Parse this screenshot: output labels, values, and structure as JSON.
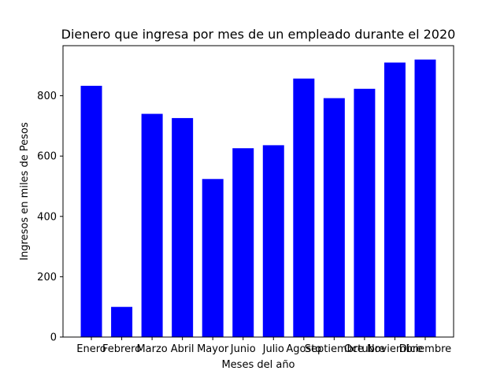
{
  "chart_data": {
    "type": "bar",
    "title": "Dienero que ingresa por mes de un empleado durante el 2020",
    "xlabel": "Meses del año",
    "ylabel": "Ingresos en miles de Pesos",
    "categories": [
      "Enero",
      "Febrero",
      "Marzo",
      "Abril",
      "Mayor",
      "Junio",
      "Julio",
      "Agosto",
      "Septiembre",
      "Octubre",
      "Noviembre",
      "Diciembre"
    ],
    "values": [
      833,
      100,
      740,
      726,
      524,
      626,
      636,
      857,
      792,
      823,
      910,
      920
    ],
    "ylim": [
      0,
      966
    ],
    "yticks": [
      0,
      200,
      400,
      600,
      800
    ],
    "grid": false,
    "bar_color": "#0000ff"
  }
}
